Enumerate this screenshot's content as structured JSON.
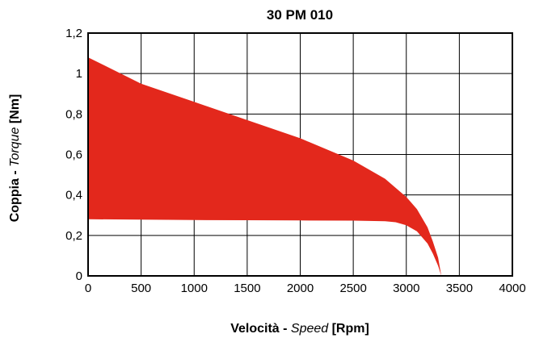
{
  "chart_data": {
    "type": "area",
    "title": "30 PM 010",
    "xlabel": {
      "prefix": "Velocità - ",
      "italic": "Speed",
      "suffix": " [Rpm]"
    },
    "ylabel": {
      "prefix": "Coppia - ",
      "italic": "Torque",
      "suffix": " [Nm]"
    },
    "xlim": [
      0,
      4000
    ],
    "ylim": [
      0,
      1.2
    ],
    "x_ticks": [
      0,
      500,
      1000,
      1500,
      2000,
      2500,
      3000,
      3500,
      4000
    ],
    "x_tick_labels": [
      "0",
      "500",
      "1000",
      "1500",
      "2000",
      "2500",
      "3000",
      "3500",
      "4000"
    ],
    "y_ticks": [
      0,
      0.2,
      0.4,
      0.6,
      0.8,
      1.0,
      1.2
    ],
    "y_tick_labels": [
      "0",
      "0,2",
      "0,4",
      "0,6",
      "0,8",
      "1",
      "1,2"
    ],
    "grid": true,
    "fill_color": "#e3281c",
    "series": [
      {
        "role": "upper",
        "x": [
          0,
          500,
          1000,
          1500,
          2000,
          2500,
          2800,
          3000,
          3100,
          3200,
          3250,
          3300,
          3330
        ],
        "y": [
          1.08,
          0.95,
          0.86,
          0.77,
          0.68,
          0.57,
          0.48,
          0.39,
          0.33,
          0.24,
          0.17,
          0.09,
          0.0
        ]
      },
      {
        "role": "lower",
        "x": [
          0,
          500,
          1000,
          1500,
          2000,
          2500,
          2800,
          2900,
          3000,
          3100,
          3200,
          3250,
          3300,
          3330
        ],
        "y": [
          0.28,
          0.278,
          0.276,
          0.275,
          0.274,
          0.273,
          0.27,
          0.265,
          0.25,
          0.22,
          0.16,
          0.11,
          0.05,
          0.0
        ]
      }
    ]
  }
}
